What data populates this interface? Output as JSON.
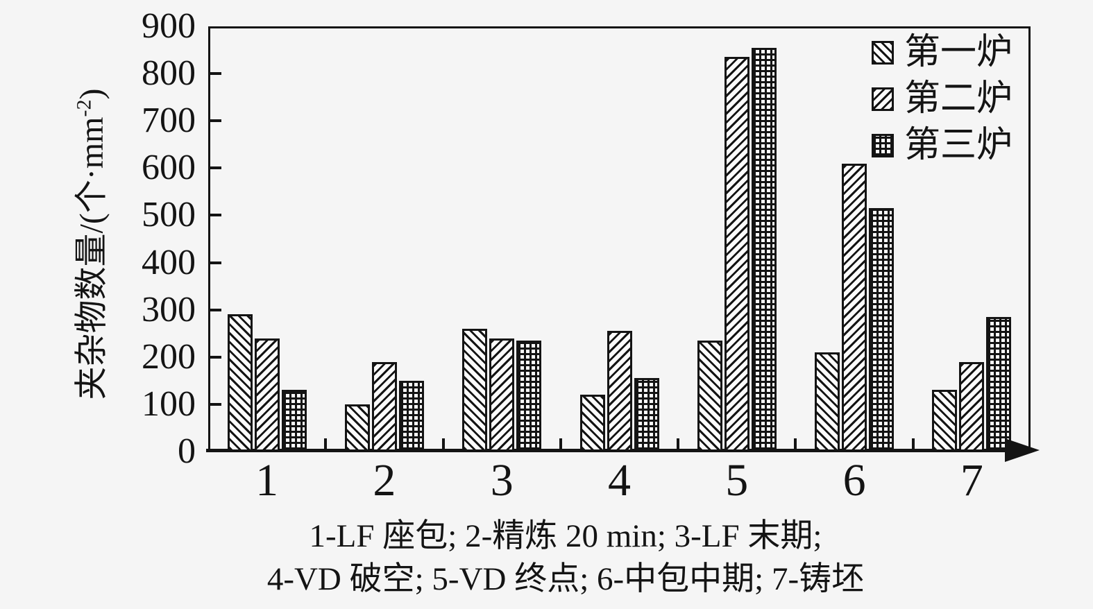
{
  "figure": {
    "background": "#f5f5f5",
    "ink": "#141414",
    "bar_fill": "#fbfbfb"
  },
  "chart_data": {
    "type": "bar",
    "categories": [
      "1",
      "2",
      "3",
      "4",
      "5",
      "6",
      "7"
    ],
    "series": [
      {
        "name": "第一炉",
        "hatch": "backslash",
        "values": [
          290,
          100,
          260,
          120,
          235,
          210,
          130
        ]
      },
      {
        "name": "第二炉",
        "hatch": "slash",
        "values": [
          240,
          190,
          240,
          255,
          835,
          610,
          190
        ]
      },
      {
        "name": "第三炉",
        "hatch": "grid",
        "values": [
          130,
          150,
          235,
          155,
          855,
          515,
          285
        ]
      }
    ],
    "title": "",
    "xlabel": "",
    "ylabel": "夹杂物数量/(个·mm⁻²)",
    "ylabel_parts": {
      "pre": "夹杂物数量/(个·mm",
      "sup": "-2",
      "post": ")"
    },
    "ylim": [
      0,
      900
    ],
    "yticks": [
      0,
      100,
      200,
      300,
      400,
      500,
      600,
      700,
      800,
      900
    ],
    "grid": false,
    "legend_position": "top-right-inside",
    "legend": [
      "第一炉",
      "第二炉",
      "第三炉"
    ]
  },
  "caption": {
    "line1": "1-LF 座包; 2-精炼 20 min; 3-LF 末期;",
    "line2": "4-VD 破空; 5-VD 终点; 6-中包中期; 7-铸坯"
  }
}
